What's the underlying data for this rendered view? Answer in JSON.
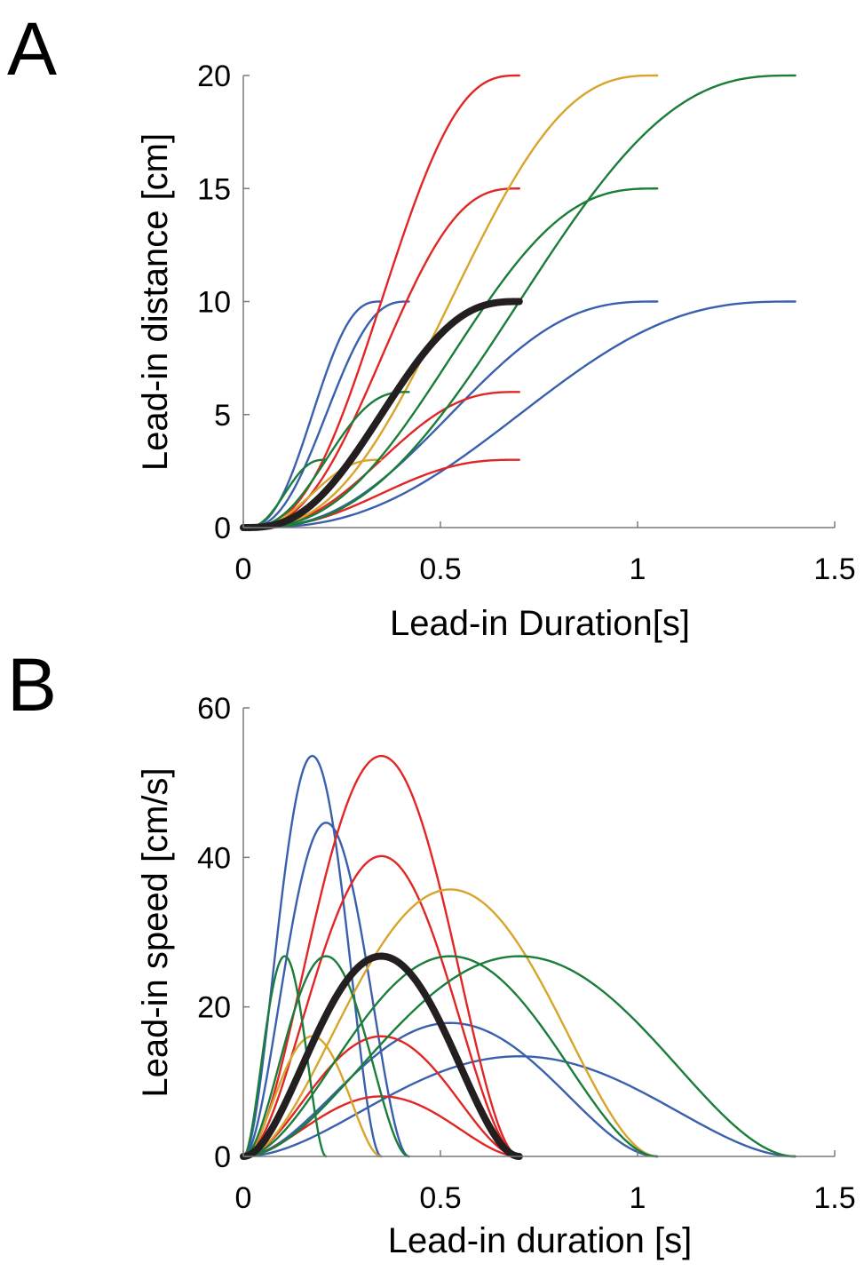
{
  "chart_data": [
    {
      "panel_label": "A",
      "type": "line",
      "xlabel": "Lead-in Duration[s]",
      "ylabel": "Lead-in distance [cm]",
      "xlim": [
        0,
        1.5
      ],
      "ylim": [
        0,
        20
      ],
      "xticks": [
        {
          "value": 0,
          "label": "0"
        },
        {
          "value": 0.5,
          "label": "0.5"
        },
        {
          "value": 1,
          "label": "1"
        },
        {
          "value": 1.5,
          "label": "1.5"
        }
      ],
      "yticks": [
        {
          "value": 0,
          "label": "0"
        },
        {
          "value": 5,
          "label": "5"
        },
        {
          "value": 10,
          "label": "10"
        },
        {
          "value": 15,
          "label": "15"
        },
        {
          "value": 20,
          "label": "20"
        }
      ],
      "quantity": "distance",
      "series": [
        {
          "color": "#3a60ad",
          "duration": 0.35,
          "distance": 10
        },
        {
          "color": "#3a60ad",
          "duration": 0.42,
          "distance": 10
        },
        {
          "color": "#3a60ad",
          "duration": 1.05,
          "distance": 10
        },
        {
          "color": "#3a60ad",
          "duration": 1.4,
          "distance": 10
        },
        {
          "color": "#e02726",
          "duration": 0.7,
          "distance": 20
        },
        {
          "color": "#e02726",
          "duration": 0.7,
          "distance": 15
        },
        {
          "color": "#e02726",
          "duration": 0.7,
          "distance": 6
        },
        {
          "color": "#e02726",
          "duration": 0.7,
          "distance": 3
        },
        {
          "color": "#d8a52c",
          "duration": 1.05,
          "distance": 20
        },
        {
          "color": "#d8a52c",
          "duration": 0.35,
          "distance": 3
        },
        {
          "color": "#1a7d3a",
          "duration": 1.4,
          "distance": 20
        },
        {
          "color": "#1a7d3a",
          "duration": 1.05,
          "distance": 15
        },
        {
          "color": "#1a7d3a",
          "duration": 0.42,
          "distance": 6
        },
        {
          "color": "#1a7d3a",
          "duration": 0.21,
          "distance": 3
        },
        {
          "color": "#231f20",
          "duration": 0.7,
          "distance": 10,
          "highlight": true
        }
      ]
    },
    {
      "panel_label": "B",
      "type": "line",
      "xlabel": "Lead-in duration [s]",
      "ylabel": "Lead-in speed [cm/s]",
      "xlim": [
        0,
        1.5
      ],
      "ylim": [
        0,
        60
      ],
      "xticks": [
        {
          "value": 0,
          "label": "0"
        },
        {
          "value": 0.5,
          "label": "0.5"
        },
        {
          "value": 1,
          "label": "1"
        },
        {
          "value": 1.5,
          "label": "1.5"
        }
      ],
      "yticks": [
        {
          "value": 0,
          "label": "0"
        },
        {
          "value": 20,
          "label": "20"
        },
        {
          "value": 40,
          "label": "40"
        },
        {
          "value": 60,
          "label": "60"
        }
      ],
      "quantity": "speed",
      "series": [
        {
          "color": "#3a60ad",
          "duration": 0.35,
          "distance": 10
        },
        {
          "color": "#3a60ad",
          "duration": 0.42,
          "distance": 10
        },
        {
          "color": "#3a60ad",
          "duration": 1.05,
          "distance": 10
        },
        {
          "color": "#3a60ad",
          "duration": 1.4,
          "distance": 10
        },
        {
          "color": "#e02726",
          "duration": 0.7,
          "distance": 20
        },
        {
          "color": "#e02726",
          "duration": 0.7,
          "distance": 15
        },
        {
          "color": "#e02726",
          "duration": 0.7,
          "distance": 6
        },
        {
          "color": "#e02726",
          "duration": 0.7,
          "distance": 3
        },
        {
          "color": "#d8a52c",
          "duration": 1.05,
          "distance": 20
        },
        {
          "color": "#d8a52c",
          "duration": 0.35,
          "distance": 3
        },
        {
          "color": "#1a7d3a",
          "duration": 1.4,
          "distance": 20
        },
        {
          "color": "#1a7d3a",
          "duration": 1.05,
          "distance": 15
        },
        {
          "color": "#1a7d3a",
          "duration": 0.42,
          "distance": 6
        },
        {
          "color": "#1a7d3a",
          "duration": 0.21,
          "distance": 3
        },
        {
          "color": "#231f20",
          "duration": 0.7,
          "distance": 10,
          "highlight": true
        }
      ]
    }
  ]
}
